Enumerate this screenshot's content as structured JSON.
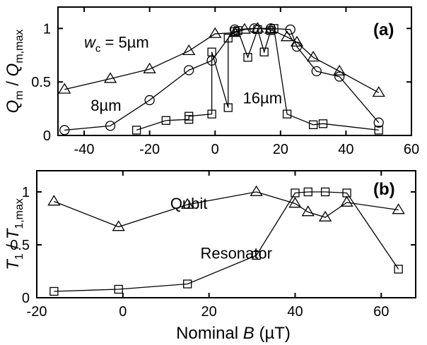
{
  "chart_data": [
    {
      "id": "a",
      "type": "line",
      "panel_label": "(a)",
      "ylabel": {
        "main": "Q",
        "main_sub": "m",
        "sep": " / ",
        "den": "Q",
        "den_sub": "m,max"
      },
      "xlabel": "",
      "xlim": [
        -48,
        60
      ],
      "ylim": [
        0,
        1.2
      ],
      "xticks": [
        -40,
        -20,
        0,
        20,
        40,
        60
      ],
      "yticks": [
        0,
        0.5,
        1
      ],
      "series": [
        {
          "marker": "triangle",
          "x": [
            -46,
            -32,
            -20,
            -8,
            0,
            6,
            9,
            13,
            17,
            22,
            25,
            30,
            38,
            50
          ],
          "y": [
            0.43,
            0.53,
            0.62,
            0.79,
            0.95,
            0.96,
            0.99,
            1.0,
            0.99,
            0.92,
            0.87,
            0.73,
            0.6,
            0.4
          ]
        },
        {
          "marker": "circle",
          "x": [
            -46,
            -32,
            -20,
            -8,
            -1,
            6,
            12,
            17,
            23,
            25,
            31,
            38,
            50
          ],
          "y": [
            0.05,
            0.09,
            0.33,
            0.61,
            0.7,
            0.99,
            1.0,
            1.0,
            0.99,
            0.83,
            0.6,
            0.55,
            0.12
          ]
        },
        {
          "marker": "square",
          "x": [
            -24,
            -15,
            -8,
            -8,
            -1,
            -1,
            4,
            4,
            6,
            7,
            10,
            13,
            15,
            17,
            18,
            22,
            30,
            33,
            50
          ],
          "y": [
            0.05,
            0.14,
            0.15,
            0.18,
            0.2,
            0.78,
            0.26,
            0.91,
            0.97,
            0.98,
            0.73,
            0.99,
            0.78,
            0.98,
            1.0,
            0.2,
            0.1,
            0.11,
            0.05
          ]
        }
      ],
      "annotations": [
        {
          "text": "w",
          "sub": "c",
          "rest": " = 5µm",
          "x": -40,
          "y": 0.82
        },
        {
          "text": "8µm",
          "x": -38,
          "y": 0.23
        },
        {
          "text": "16µm",
          "x": 8.5,
          "y": 0.3
        }
      ]
    },
    {
      "id": "b",
      "type": "line",
      "panel_label": "(b)",
      "ylabel": {
        "main": "T",
        "main_sub": "1",
        "sep": " / ",
        "den": "T",
        "den_sub": "1,max"
      },
      "xlabel": {
        "text": "Nominal  ",
        "italic": "B",
        "unit": " (µT)"
      },
      "xlim": [
        -20,
        68
      ],
      "ylim": [
        0,
        1.2
      ],
      "xticks": [
        -20,
        0,
        20,
        40,
        60
      ],
      "yticks": [
        0,
        0.5,
        1
      ],
      "series": [
        {
          "name": "Qubit",
          "marker": "triangle",
          "x": [
            -16,
            -1,
            15,
            31,
            40,
            43,
            47,
            52,
            64
          ],
          "y": [
            0.91,
            0.67,
            0.88,
            1.0,
            0.89,
            0.81,
            0.76,
            0.9,
            0.83
          ]
        },
        {
          "name": "Resonator",
          "marker": "square",
          "x": [
            -16,
            -1,
            15,
            31,
            40,
            43,
            47,
            52,
            64
          ],
          "y": [
            0.06,
            0.08,
            0.13,
            0.4,
            0.99,
            1.0,
            1.0,
            0.99,
            0.27
          ]
        }
      ],
      "annotations": [
        {
          "text": "Qubit",
          "x": 11,
          "y": 0.84
        },
        {
          "text": "Resonator",
          "x": 18,
          "y": 0.37
        }
      ]
    }
  ]
}
